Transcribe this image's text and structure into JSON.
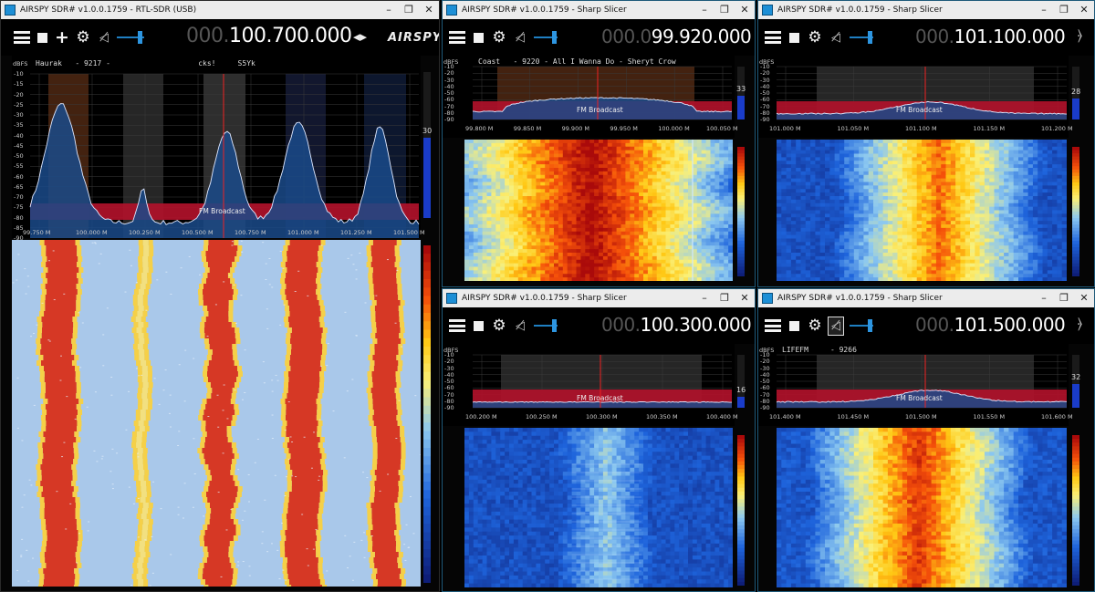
{
  "colors": {
    "accent": "#1f7fc2",
    "band_fill": "#b0112a",
    "spectrum_fill": "#1a4a8a",
    "window_border": "#1e5a7a",
    "titlebar_bg": "#ececec"
  },
  "icons": [
    "menu-icon",
    "stop-icon",
    "plus-icon",
    "gear-icon",
    "mute-icon",
    "volume-slider",
    "lr-arrows-icon",
    "airspy-logo",
    "wifi-icon"
  ],
  "windows": [
    {
      "title": "AIRSPY SDR# v1.0.0.1759 - RTL-SDR (USB)",
      "controls": {
        "minimize": "–",
        "restore": "❐",
        "close": "✕"
      },
      "freq_dim": "000.",
      "freq_main": "100.700.000",
      "rds": "Haurak   - 9217 -                    cks!     S5Yk",
      "dbfs_label": "dBFS",
      "y_ticks": [
        "-10",
        "-15",
        "-20",
        "-25",
        "-30",
        "-35",
        "-40",
        "-45",
        "-50",
        "-55",
        "-60",
        "-65",
        "-70",
        "-75",
        "-80",
        "-85",
        "-90"
      ],
      "x_ticks": [
        "99.750 M",
        "100.000 M",
        "100.250 M",
        "100.500 M",
        "100.750 M",
        "101.000 M",
        "101.250 M",
        "101.500 M"
      ],
      "band_label": "FM Broadcast",
      "level_value": "30",
      "level": 0.55,
      "logo": "AIRSPY"
    },
    {
      "title": "AIRSPY SDR# v1.0.0.1759 - Sharp Slicer",
      "controls": {
        "minimize": "–",
        "restore": "❐",
        "close": "✕"
      },
      "freq_dim": "000.0",
      "freq_main": "99.920.000",
      "rds": "Coast   - 9220 - All I Wanna Do - Sheryt Crow",
      "dbfs_label": "dBFS",
      "y_ticks": [
        "-10",
        "-20",
        "-30",
        "-40",
        "-50",
        "-60",
        "-70",
        "-80",
        "-90"
      ],
      "x_ticks": [
        "99.800 M",
        "99.850 M",
        "99.900 M",
        "99.950 M",
        "100.000 M",
        "100.050 M"
      ],
      "band_label": "FM Broadcast",
      "level_value": "33",
      "level": 0.45
    },
    {
      "title": "AIRSPY SDR# v1.0.0.1759 - Sharp Slicer",
      "controls": {
        "minimize": "–",
        "restore": "❐",
        "close": "✕"
      },
      "freq_dim": "000.",
      "freq_main": "101.100.000",
      "rds": "",
      "dbfs_label": "dBFS",
      "y_ticks": [
        "-10",
        "-20",
        "-30",
        "-40",
        "-50",
        "-60",
        "-70",
        "-80",
        "-90"
      ],
      "x_ticks": [
        "101.000 M",
        "101.050 M",
        "101.100 M",
        "101.150 M",
        "101.200 M"
      ],
      "band_label": "FM Broadcast",
      "level_value": "28",
      "level": 0.4
    },
    {
      "title": "AIRSPY SDR# v1.0.0.1759 - Sharp Slicer",
      "controls": {
        "minimize": "–",
        "restore": "❐",
        "close": "✕"
      },
      "freq_dim": "000.",
      "freq_main": "100.300.000",
      "rds": "",
      "dbfs_label": "dBFS",
      "y_ticks": [
        "-10",
        "-20",
        "-30",
        "-40",
        "-50",
        "-60",
        "-70",
        "-80",
        "-90"
      ],
      "x_ticks": [
        "100.200 M",
        "100.250 M",
        "100.300 M",
        "100.350 M",
        "100.400 M"
      ],
      "band_label": "FM Broadcast",
      "level_value": "16",
      "level": 0.2
    },
    {
      "title": "AIRSPY SDR# v1.0.0.1759 - Sharp Slicer",
      "controls": {
        "minimize": "–",
        "restore": "❐",
        "close": "✕"
      },
      "freq_dim": "000.",
      "freq_main": "101.500.000",
      "rds": "LIFEFM     - 9266",
      "dbfs_label": "dBFS",
      "y_ticks": [
        "-10",
        "-20",
        "-30",
        "-40",
        "-50",
        "-60",
        "-70",
        "-80",
        "-90"
      ],
      "x_ticks": [
        "101.400 M",
        "101.450 M",
        "101.500 M",
        "101.550 M",
        "101.600 M"
      ],
      "band_label": "FM Broadcast",
      "level_value": "32",
      "level": 0.45
    }
  ]
}
